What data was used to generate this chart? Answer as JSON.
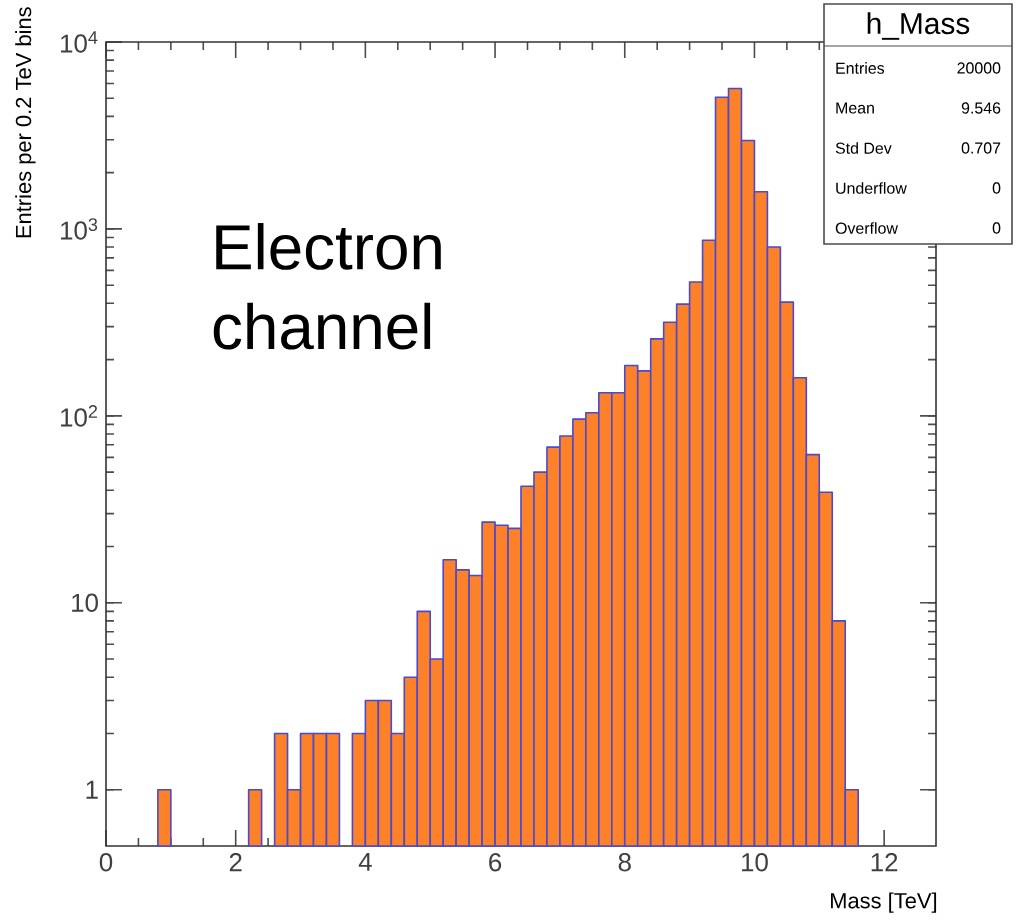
{
  "chart_data": {
    "type": "histogram",
    "xlabel": "Mass [TeV]",
    "ylabel": "Entries per 0.2 TeV bins",
    "bins": [
      0,
      0.2,
      0.4,
      0.6,
      0.8,
      1.0,
      1.2,
      1.4,
      1.6,
      1.8,
      2.0,
      2.2,
      2.4,
      2.6,
      2.8,
      3.0,
      3.2,
      3.4,
      3.6,
      3.8,
      4.0,
      4.2,
      4.4,
      4.6,
      4.8,
      5.0,
      5.2,
      5.4,
      5.6,
      5.8,
      6.0,
      6.2,
      6.4,
      6.6,
      6.8,
      7.0,
      7.2,
      7.4,
      7.6,
      7.8,
      8.0,
      8.2,
      8.4,
      8.6,
      8.8,
      9.0,
      9.2,
      9.4,
      9.6,
      9.8,
      10.0,
      10.2,
      10.4,
      10.6,
      10.8,
      11.0,
      11.2,
      11.4,
      11.6,
      11.8,
      12.0,
      12.2,
      12.4,
      12.6,
      12.8
    ],
    "values": [
      null,
      null,
      null,
      null,
      1,
      null,
      null,
      null,
      null,
      null,
      null,
      1,
      null,
      2,
      1,
      2,
      2,
      2,
      null,
      2,
      3,
      3,
      2,
      4,
      9,
      5,
      17,
      15,
      14,
      27,
      26,
      25,
      42,
      50,
      68,
      78,
      96,
      104,
      133,
      133,
      186,
      174,
      258,
      317,
      396,
      520,
      870,
      5060,
      5640,
      2970,
      1580,
      800,
      406,
      160,
      62,
      39,
      8,
      1,
      null,
      null,
      null,
      null,
      null,
      null
    ],
    "color": "#fd8128",
    "log": true,
    "grid": false,
    "xlim": [
      0,
      12.8
    ],
    "ylim": [
      0.5,
      10000
    ],
    "xticks": [
      0,
      2,
      4,
      6,
      8,
      10,
      12
    ],
    "yticks": [
      1,
      10,
      {
        "value": 100,
        "label": "10$^{2}$"
      },
      {
        "value": 1000,
        "label": "10$^{3}$"
      },
      {
        "value": 10000,
        "label": "10$^{4}$"
      }
    ],
    "annotations": [
      "Electron channel",
      "h_Mass",
      "Entries",
      "20000",
      "Mean",
      "9.546",
      "Std Dev",
      "0.707",
      "Underflow",
      "0",
      "Overflow",
      "0"
    ]
  }
}
